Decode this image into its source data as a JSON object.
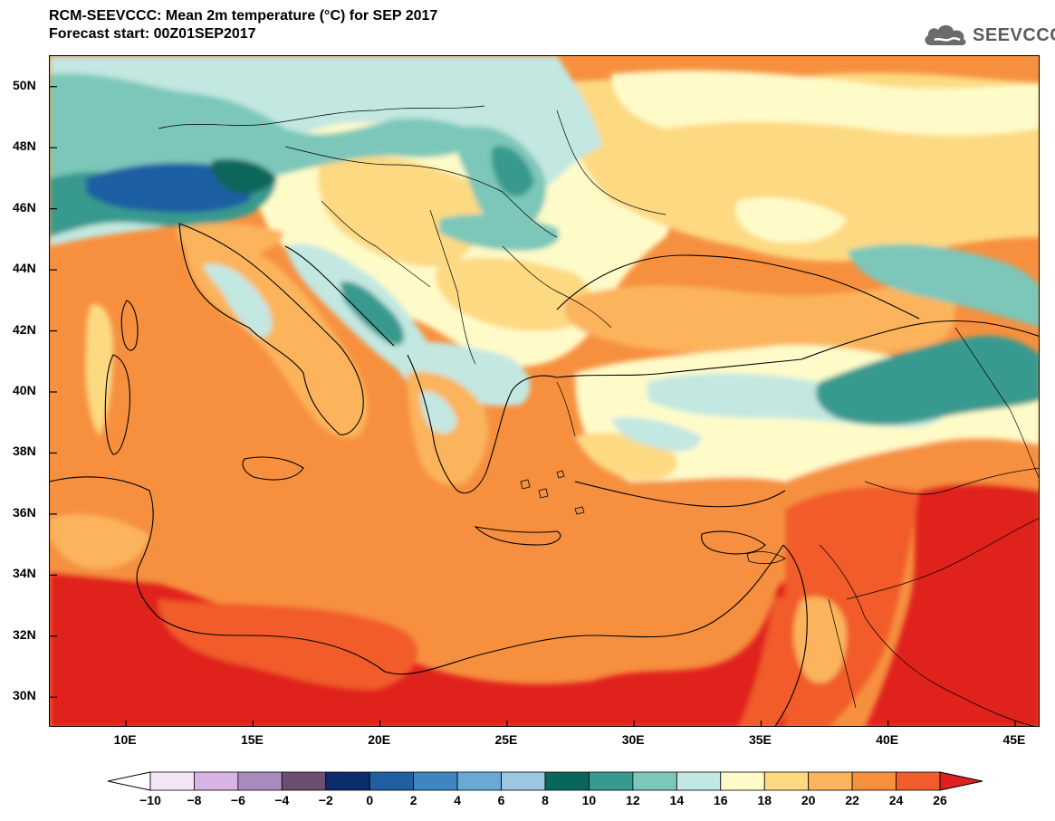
{
  "header": {
    "title": "RCM-SEEVCCC: Mean 2m temperature (°C) for SEP 2017",
    "subtitle": "Forecast start: 00Z01SEP2017",
    "logo_text": "SEEVCCC",
    "logo_icon": "cloud-icon"
  },
  "map": {
    "variable": "Mean 2m temperature",
    "units": "°C",
    "lon_range": [
      7,
      46
    ],
    "lat_range": [
      29,
      51
    ],
    "lat_ticks": [
      {
        "value": 50,
        "label": "50N"
      },
      {
        "value": 48,
        "label": "48N"
      },
      {
        "value": 46,
        "label": "46N"
      },
      {
        "value": 44,
        "label": "44N"
      },
      {
        "value": 42,
        "label": "42N"
      },
      {
        "value": 40,
        "label": "40N"
      },
      {
        "value": 38,
        "label": "38N"
      },
      {
        "value": 36,
        "label": "36N"
      },
      {
        "value": 34,
        "label": "34N"
      },
      {
        "value": 32,
        "label": "32N"
      },
      {
        "value": 30,
        "label": "30N"
      }
    ],
    "lon_ticks": [
      {
        "value": 10,
        "label": "10E"
      },
      {
        "value": 15,
        "label": "15E"
      },
      {
        "value": 20,
        "label": "20E"
      },
      {
        "value": 25,
        "label": "25E"
      },
      {
        "value": 30,
        "label": "30E"
      },
      {
        "value": 35,
        "label": "35E"
      },
      {
        "value": 40,
        "label": "40E"
      },
      {
        "value": 45,
        "label": "45E"
      }
    ]
  },
  "colorbar": {
    "low_color": "#ffffff",
    "high_color": "#e0201e",
    "bins": [
      {
        "from": -10,
        "to": -8,
        "color": "#f2e6f6"
      },
      {
        "from": -8,
        "to": -6,
        "color": "#d7b4e3"
      },
      {
        "from": -6,
        "to": -4,
        "color": "#a68bbd"
      },
      {
        "from": -4,
        "to": -2,
        "color": "#6b4e70"
      },
      {
        "from": -2,
        "to": 0,
        "color": "#0c2d6b"
      },
      {
        "from": 0,
        "to": 2,
        "color": "#1f5fa2"
      },
      {
        "from": 2,
        "to": 4,
        "color": "#3f86c0"
      },
      {
        "from": 4,
        "to": 6,
        "color": "#6aa9d6"
      },
      {
        "from": 6,
        "to": 8,
        "color": "#9dc6e1"
      },
      {
        "from": 8,
        "to": 10,
        "color": "#09665a"
      },
      {
        "from": 10,
        "to": 12,
        "color": "#389a8e"
      },
      {
        "from": 12,
        "to": 14,
        "color": "#7cc7b9"
      },
      {
        "from": 14,
        "to": 16,
        "color": "#c3e7e1"
      },
      {
        "from": 16,
        "to": 18,
        "color": "#fefbc9"
      },
      {
        "from": 18,
        "to": 20,
        "color": "#fdd982"
      },
      {
        "from": 20,
        "to": 22,
        "color": "#fbb45b"
      },
      {
        "from": 22,
        "to": 24,
        "color": "#f6903f"
      },
      {
        "from": 24,
        "to": 26,
        "color": "#f15c2c"
      }
    ],
    "labels": [
      "−10",
      "−8",
      "−6",
      "−4",
      "−2",
      "0",
      "2",
      "4",
      "6",
      "8",
      "10",
      "12",
      "14",
      "16",
      "18",
      "20",
      "22",
      "24",
      "26"
    ]
  }
}
